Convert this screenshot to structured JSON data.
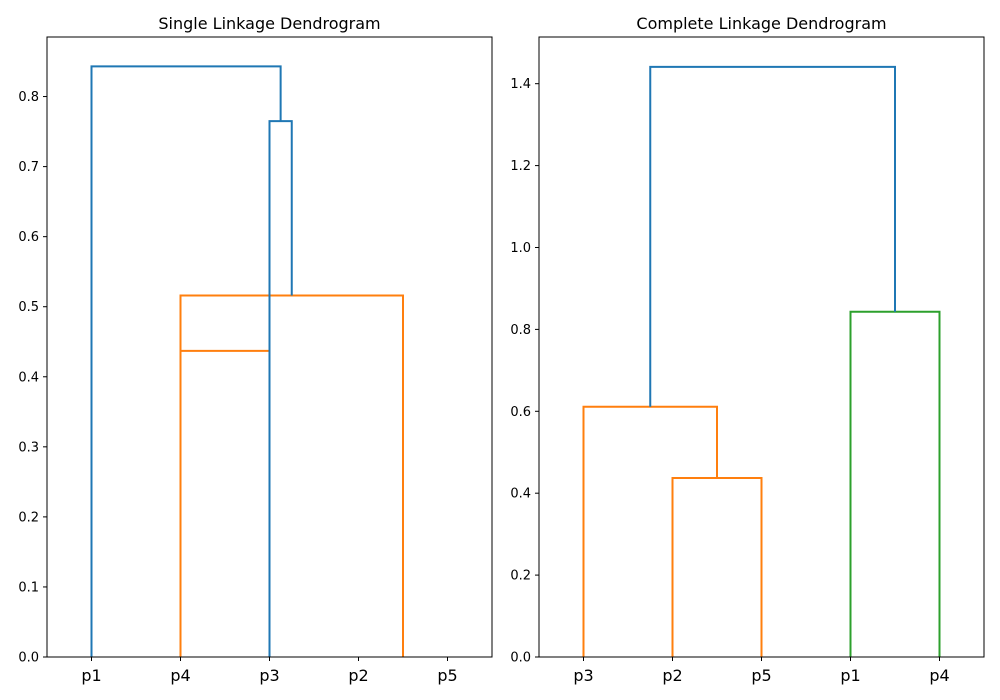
{
  "chart_data": [
    {
      "type": "dendrogram",
      "title": "Single Linkage Dendrogram",
      "xlabel": "",
      "ylabel": "",
      "ylim": [
        0,
        0.885
      ],
      "yticks": [
        "0.0",
        "0.1",
        "0.2",
        "0.3",
        "0.4",
        "0.5",
        "0.6",
        "0.7",
        "0.8"
      ],
      "leaves": [
        "p1",
        "p4",
        "p3",
        "p2",
        "p5"
      ],
      "links": [
        {
          "left": 15,
          "right": 25,
          "height": 0.437,
          "color": "#ff7f0e"
        },
        {
          "left": 15,
          "right": 40,
          "height": 0.516,
          "color": "#ff7f0e"
        },
        {
          "left": 25,
          "right": 27.5,
          "height": 0.765,
          "color": "#1f77b4"
        },
        {
          "left": 5,
          "right": 26.25,
          "height": 0.843,
          "color": "#1f77b4"
        }
      ],
      "links_note_unused": ""
    },
    {
      "type": "dendrogram",
      "title": "Complete Linkage Dendrogram",
      "xlabel": "",
      "ylabel": "",
      "ylim": [
        0,
        1.514
      ],
      "yticks": [
        "0.0",
        "0.2",
        "0.4",
        "0.6",
        "0.8",
        "1.0",
        "1.2",
        "1.4"
      ],
      "leaves": [
        "p3",
        "p2",
        "p5",
        "p1",
        "p4"
      ],
      "links": [
        {
          "left": 15,
          "right": 25,
          "height": 0.437,
          "color": "#ff7f0e"
        },
        {
          "left": 5,
          "right": 20,
          "height": 0.611,
          "color": "#ff7f0e"
        },
        {
          "left": 35,
          "right": 45,
          "height": 0.843,
          "color": "#2ca02c"
        },
        {
          "left": 12.5,
          "right": 40,
          "height": 1.441,
          "color": "#1f77b4"
        }
      ],
      "links_note_unused": ""
    }
  ]
}
